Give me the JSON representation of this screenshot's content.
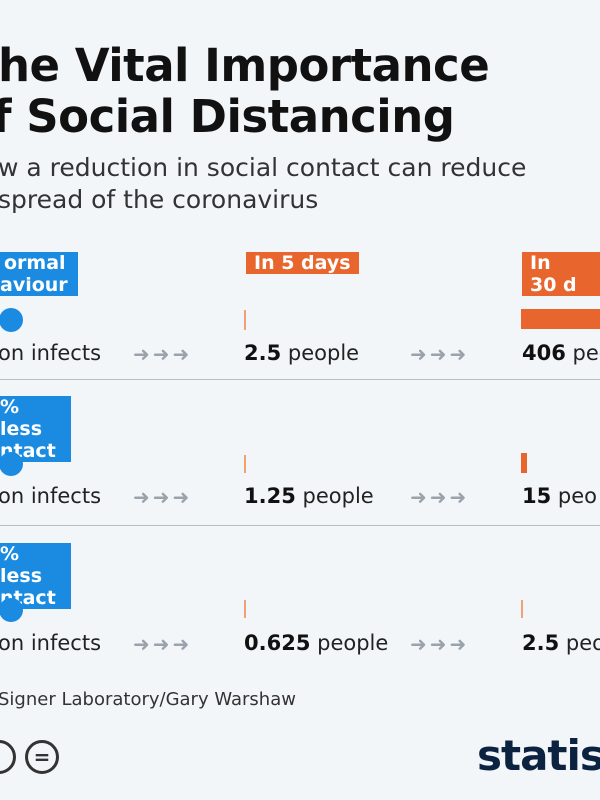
{
  "chart_data": {
    "type": "bar",
    "title": [
      "he Vital Importance",
      "f Social Distancing"
    ],
    "subtitle": [
      "w a reduction in social contact can reduce",
      "spread of the coronavirus"
    ],
    "columns": [
      "",
      "In 5 days",
      "In 30 d"
    ],
    "series": [
      {
        "name": [
          "ormal",
          "aviour"
        ],
        "start_text": "on infects",
        "in_5_days": {
          "value": 2.5,
          "unit": "people"
        },
        "in_30_days": {
          "value": 406,
          "unit": "peo"
        }
      },
      {
        "name": [
          "% less",
          "ntact"
        ],
        "start_text": "on infects",
        "in_5_days": {
          "value": 1.25,
          "unit": "people"
        },
        "in_30_days": {
          "value": 15,
          "unit": "peo"
        }
      },
      {
        "name": [
          "% less",
          "ntact"
        ],
        "start_text": "on infects",
        "in_5_days": {
          "value": 0.625,
          "unit": "people"
        },
        "in_30_days": {
          "value": 2.5,
          "unit": "peo"
        }
      }
    ],
    "source": "Signer Laboratory/Gary Warshaw"
  },
  "branding": {
    "logo": "statist",
    "license_icons": [
      "cc-icon",
      "nd-icon"
    ]
  },
  "colors": {
    "blue": "#1a8be0",
    "orange": "#e8662e",
    "background": "#f3f6f9"
  }
}
